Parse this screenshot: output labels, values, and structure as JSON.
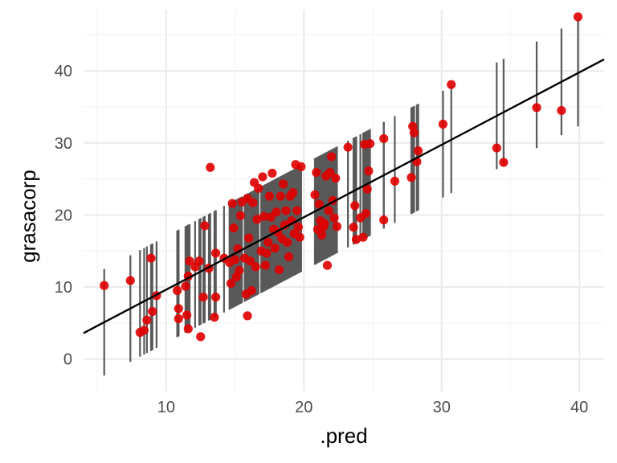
{
  "chart_data": {
    "type": "scatter",
    "title": "",
    "xlabel": ".pred",
    "ylabel": "grasacorp",
    "xlim": [
      4.0,
      41.8
    ],
    "ylim": [
      -4.5,
      48.5
    ],
    "x_ticks": [
      10,
      20,
      30,
      40
    ],
    "y_ticks": [
      0,
      10,
      20,
      30,
      40
    ],
    "x_tick_labels": [
      "10",
      "20",
      "30",
      "40"
    ],
    "y_tick_labels": [
      "0",
      "10",
      "20",
      "30",
      "40"
    ],
    "x_minor_ticks": [
      5,
      15,
      25,
      35
    ],
    "y_minor_ticks": [
      -5,
      5,
      15,
      25,
      35,
      45
    ],
    "grid": true,
    "fit_line": {
      "x": [
        4.0,
        41.8
      ],
      "y": [
        3.6,
        41.6
      ]
    },
    "interval_half_width": 7.4,
    "colors": {
      "points": "#e00000",
      "intervals": "#595959",
      "fit_line": "#000000",
      "grid_major": "#ebebeb",
      "grid_minor": "#f5f5f5"
    },
    "points": [
      {
        "x": 5.5,
        "y": 10.2
      },
      {
        "x": 7.4,
        "y": 10.9
      },
      {
        "x": 8.1,
        "y": 3.7
      },
      {
        "x": 8.4,
        "y": 4.0
      },
      {
        "x": 8.6,
        "y": 5.4
      },
      {
        "x": 8.9,
        "y": 14.0
      },
      {
        "x": 9.0,
        "y": 6.6
      },
      {
        "x": 9.3,
        "y": 8.8
      },
      {
        "x": 10.8,
        "y": 9.5
      },
      {
        "x": 10.9,
        "y": 7.0
      },
      {
        "x": 10.9,
        "y": 5.6
      },
      {
        "x": 11.4,
        "y": 10.1
      },
      {
        "x": 11.5,
        "y": 6.1
      },
      {
        "x": 11.6,
        "y": 4.2
      },
      {
        "x": 11.6,
        "y": 11.5
      },
      {
        "x": 11.7,
        "y": 13.6
      },
      {
        "x": 12.1,
        "y": 12.8
      },
      {
        "x": 12.4,
        "y": 13.6
      },
      {
        "x": 12.5,
        "y": 3.1
      },
      {
        "x": 12.7,
        "y": 8.6
      },
      {
        "x": 12.8,
        "y": 18.5
      },
      {
        "x": 13.1,
        "y": 12.6
      },
      {
        "x": 13.2,
        "y": 26.6
      },
      {
        "x": 13.5,
        "y": 5.8
      },
      {
        "x": 13.6,
        "y": 8.6
      },
      {
        "x": 13.6,
        "y": 14.7
      },
      {
        "x": 14.2,
        "y": 14.0
      },
      {
        "x": 14.6,
        "y": 13.4
      },
      {
        "x": 14.7,
        "y": 10.5
      },
      {
        "x": 14.8,
        "y": 21.6
      },
      {
        "x": 14.9,
        "y": 18.2
      },
      {
        "x": 15.0,
        "y": 13.8
      },
      {
        "x": 15.1,
        "y": 11.4
      },
      {
        "x": 15.2,
        "y": 15.3
      },
      {
        "x": 15.3,
        "y": 12.3
      },
      {
        "x": 15.4,
        "y": 19.9
      },
      {
        "x": 15.5,
        "y": 21.8
      },
      {
        "x": 15.7,
        "y": 14.0
      },
      {
        "x": 15.8,
        "y": 9.0
      },
      {
        "x": 15.9,
        "y": 22.3
      },
      {
        "x": 15.9,
        "y": 6.0
      },
      {
        "x": 16.0,
        "y": 16.8
      },
      {
        "x": 16.1,
        "y": 13.6
      },
      {
        "x": 16.2,
        "y": 9.5
      },
      {
        "x": 16.3,
        "y": 21.7
      },
      {
        "x": 16.4,
        "y": 24.5
      },
      {
        "x": 16.5,
        "y": 12.8
      },
      {
        "x": 16.6,
        "y": 19.4
      },
      {
        "x": 16.7,
        "y": 23.7
      },
      {
        "x": 16.9,
        "y": 15.0
      },
      {
        "x": 17.0,
        "y": 25.3
      },
      {
        "x": 17.1,
        "y": 19.8
      },
      {
        "x": 17.2,
        "y": 13.0
      },
      {
        "x": 17.3,
        "y": 14.7
      },
      {
        "x": 17.4,
        "y": 16.2
      },
      {
        "x": 17.5,
        "y": 22.6
      },
      {
        "x": 17.6,
        "y": 19.7
      },
      {
        "x": 17.7,
        "y": 25.8
      },
      {
        "x": 17.8,
        "y": 18.0
      },
      {
        "x": 17.9,
        "y": 15.4
      },
      {
        "x": 18.0,
        "y": 20.4
      },
      {
        "x": 18.1,
        "y": 17.6
      },
      {
        "x": 18.2,
        "y": 12.4
      },
      {
        "x": 18.3,
        "y": 22.6
      },
      {
        "x": 18.4,
        "y": 16.7
      },
      {
        "x": 18.5,
        "y": 24.3
      },
      {
        "x": 18.6,
        "y": 18.6
      },
      {
        "x": 18.7,
        "y": 20.6
      },
      {
        "x": 18.8,
        "y": 16.2
      },
      {
        "x": 18.9,
        "y": 14.2
      },
      {
        "x": 19.0,
        "y": 22.6
      },
      {
        "x": 19.1,
        "y": 19.2
      },
      {
        "x": 19.2,
        "y": 23.1
      },
      {
        "x": 19.3,
        "y": 17.4
      },
      {
        "x": 19.4,
        "y": 27.0
      },
      {
        "x": 19.5,
        "y": 20.6
      },
      {
        "x": 19.6,
        "y": 18.3
      },
      {
        "x": 19.7,
        "y": 16.9
      },
      {
        "x": 19.8,
        "y": 26.7
      },
      {
        "x": 20.8,
        "y": 22.8
      },
      {
        "x": 20.9,
        "y": 25.9
      },
      {
        "x": 21.0,
        "y": 18.0
      },
      {
        "x": 21.1,
        "y": 21.5
      },
      {
        "x": 21.2,
        "y": 19.2
      },
      {
        "x": 21.3,
        "y": 17.2
      },
      {
        "x": 21.4,
        "y": 18.3
      },
      {
        "x": 21.5,
        "y": 18.8
      },
      {
        "x": 21.6,
        "y": 25.4
      },
      {
        "x": 21.7,
        "y": 13.0
      },
      {
        "x": 21.8,
        "y": 20.6
      },
      {
        "x": 21.9,
        "y": 25.9
      },
      {
        "x": 22.0,
        "y": 28.1
      },
      {
        "x": 22.1,
        "y": 22.0
      },
      {
        "x": 22.2,
        "y": 19.6
      },
      {
        "x": 22.3,
        "y": 25.1
      },
      {
        "x": 22.4,
        "y": 18.4
      },
      {
        "x": 23.2,
        "y": 29.4
      },
      {
        "x": 23.6,
        "y": 18.3
      },
      {
        "x": 23.7,
        "y": 21.3
      },
      {
        "x": 23.8,
        "y": 16.6
      },
      {
        "x": 24.1,
        "y": 19.6
      },
      {
        "x": 24.3,
        "y": 16.9
      },
      {
        "x": 24.4,
        "y": 29.8
      },
      {
        "x": 24.5,
        "y": 20.2
      },
      {
        "x": 24.6,
        "y": 23.6
      },
      {
        "x": 24.7,
        "y": 26.1
      },
      {
        "x": 24.8,
        "y": 29.9
      },
      {
        "x": 25.8,
        "y": 19.3
      },
      {
        "x": 25.8,
        "y": 30.6
      },
      {
        "x": 26.6,
        "y": 24.7
      },
      {
        "x": 27.8,
        "y": 25.2
      },
      {
        "x": 27.9,
        "y": 32.3
      },
      {
        "x": 28.0,
        "y": 31.4
      },
      {
        "x": 28.2,
        "y": 27.4
      },
      {
        "x": 28.3,
        "y": 28.9
      },
      {
        "x": 30.1,
        "y": 32.6
      },
      {
        "x": 30.7,
        "y": 38.1
      },
      {
        "x": 34.0,
        "y": 29.3
      },
      {
        "x": 34.5,
        "y": 27.3
      },
      {
        "x": 36.9,
        "y": 34.9
      },
      {
        "x": 38.7,
        "y": 34.5
      },
      {
        "x": 39.9,
        "y": 47.5
      }
    ]
  }
}
